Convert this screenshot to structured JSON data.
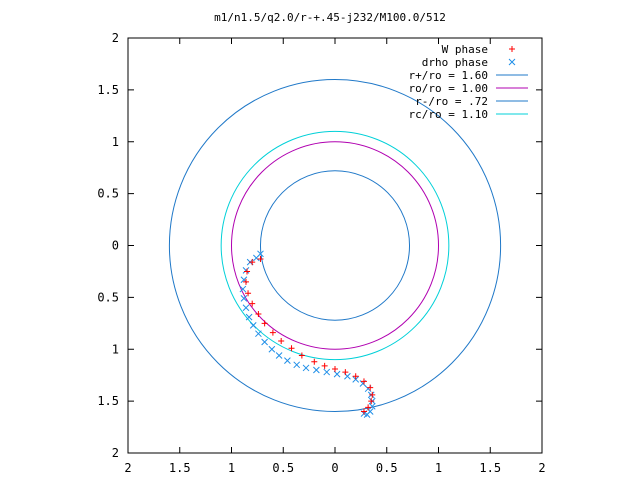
{
  "chart_data": {
    "type": "scatter",
    "title": "m1/n1.5/q2.0/r-+.45-j232/M100.0/512",
    "xlabel": "",
    "ylabel": "",
    "xlim": [
      2,
      -2
    ],
    "ylim": [
      2,
      -2
    ],
    "x_ticks": [
      "2",
      "1.5",
      "1",
      "0.5",
      "0",
      "0.5",
      "1",
      "1.5",
      "2"
    ],
    "y_ticks": [
      "2",
      "1.5",
      "1",
      "0.5",
      "0",
      "0.5",
      "1",
      "1.5",
      "2"
    ],
    "grid": false,
    "legend_position": "top-right",
    "series": [
      {
        "name": "W phase",
        "kind": "points",
        "marker": "plus",
        "color": "#ff0000",
        "x": [
          0.72,
          0.8,
          0.85,
          0.86,
          0.84,
          0.8,
          0.74,
          0.68,
          0.6,
          0.52,
          0.42,
          0.32,
          0.2,
          0.1,
          0.0,
          -0.1,
          -0.2,
          -0.28,
          -0.34,
          -0.36,
          -0.35,
          -0.32,
          -0.28
        ],
        "y": [
          -0.13,
          -0.16,
          -0.25,
          -0.35,
          -0.46,
          -0.56,
          -0.66,
          -0.75,
          -0.84,
          -0.92,
          -0.99,
          -1.06,
          -1.12,
          -1.16,
          -1.19,
          -1.22,
          -1.26,
          -1.31,
          -1.37,
          -1.44,
          -1.5,
          -1.56,
          -1.6
        ]
      },
      {
        "name": "drho phase",
        "kind": "points",
        "marker": "cross",
        "color": "#1f8fe8",
        "x": [
          0.72,
          0.76,
          0.82,
          0.86,
          0.88,
          0.89,
          0.88,
          0.86,
          0.83,
          0.79,
          0.74,
          0.68,
          0.61,
          0.54,
          0.46,
          0.37,
          0.28,
          0.18,
          0.08,
          -0.02,
          -0.12,
          -0.2,
          -0.27,
          -0.32,
          -0.35,
          -0.36,
          -0.36,
          -0.34,
          -0.31,
          -0.28
        ],
        "y": [
          -0.08,
          -0.12,
          -0.16,
          -0.24,
          -0.33,
          -0.42,
          -0.51,
          -0.6,
          -0.69,
          -0.77,
          -0.85,
          -0.93,
          -1.0,
          -1.06,
          -1.11,
          -1.15,
          -1.18,
          -1.2,
          -1.22,
          -1.24,
          -1.26,
          -1.29,
          -1.33,
          -1.38,
          -1.44,
          -1.5,
          -1.55,
          -1.6,
          -1.63,
          -1.62
        ]
      },
      {
        "name": "r+/ro = 1.60",
        "kind": "circle",
        "radius": 1.6,
        "color": "#1f78c8"
      },
      {
        "name": "ro/ro = 1.00",
        "kind": "circle",
        "radius": 1.0,
        "color": "#b000b0"
      },
      {
        "name": "r-/ro = .72",
        "kind": "circle",
        "radius": 0.72,
        "color": "#1f78c8"
      },
      {
        "name": "rc/ro = 1.10",
        "kind": "circle",
        "radius": 1.1,
        "color": "#00d0d8"
      }
    ]
  }
}
